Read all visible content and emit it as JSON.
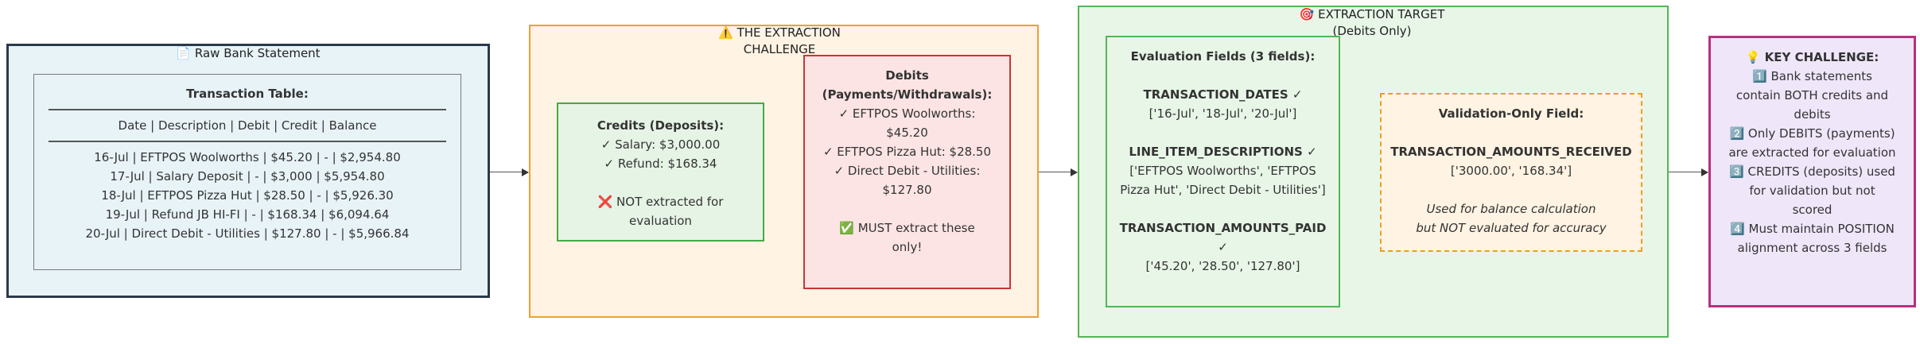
{
  "raw": {
    "title": "📄 Raw Bank Statement",
    "table_title": "Transaction Table:",
    "header": "Date | Description | Debit | Credit | Balance",
    "rows": [
      "16-Jul | EFTPOS Woolworths | $45.20 | - | $2,954.80",
      "17-Jul | Salary Deposit | - | $3,000 | $5,954.80",
      "18-Jul | EFTPOS Pizza Hut | $28.50 | - | $5,926.30",
      "19-Jul | Refund JB HI-FI | - | $168.34 | $6,094.64",
      "20-Jul | Direct Debit - Utilities | $127.80 | - | $5,966.84"
    ]
  },
  "challenge": {
    "title_line1": "⚠️ THE EXTRACTION",
    "title_line2": "CHALLENGE",
    "credits": {
      "title": "Credits (Deposits):",
      "items": [
        "✓ Salary: $3,000.00",
        "✓ Refund: $168.34"
      ],
      "note": "❌ NOT extracted for evaluation"
    },
    "debits": {
      "title": "Debits (Payments/Withdrawals):",
      "items": [
        "✓ EFTPOS Woolworths: $45.20",
        "✓ EFTPOS Pizza Hut: $28.50",
        "✓ Direct Debit - Utilities: $127.80"
      ],
      "note": "✅ MUST extract these only!"
    }
  },
  "target": {
    "title_line1": "🎯 EXTRACTION TARGET",
    "title_line2": "(Debits Only)",
    "eval": {
      "title": "Evaluation Fields (3 fields):",
      "fields": [
        {
          "name": "TRANSACTION_DATES ✓",
          "value": "['16-Jul', '18-Jul', '20-Jul']"
        },
        {
          "name": "LINE_ITEM_DESCRIPTIONS ✓",
          "value": "['EFTPOS Woolworths', 'EFTPOS Pizza Hut', 'Direct Debit - Utilities']"
        },
        {
          "name": "TRANSACTION_AMOUNTS_PAID ✓",
          "value": "['45.20', '28.50', '127.80']"
        }
      ]
    },
    "validation": {
      "title": "Validation-Only Field:",
      "field": "TRANSACTION_AMOUNTS_RECEIVED",
      "value": "['3000.00', '168.34']",
      "note_line1": "Used for balance calculation",
      "note_line2": "but NOT evaluated for accuracy"
    }
  },
  "key": {
    "title": "💡 KEY CHALLENGE:",
    "points": [
      "1️⃣ Bank statements contain BOTH credits and debits",
      "2️⃣ Only DEBITS (payments) are extracted for evaluation",
      "3️⃣ CREDITS (deposits) used for validation but not scored",
      "4️⃣ Must maintain POSITION alignment across 3 fields"
    ]
  },
  "colors": {
    "raw_fill": "#e8f3f8",
    "raw_border": "#2b3a4a",
    "challenge_fill": "#fff3e3",
    "challenge_border": "#f0a030",
    "credits_fill": "#e6f4e6",
    "credits_border": "#44aa44",
    "debits_fill": "#fde4e4",
    "debits_border": "#cc3333",
    "target_fill": "#e8f6e8",
    "target_border": "#55b555",
    "validation_border": "#e8a020",
    "key_fill": "#efe6fa",
    "key_border": "#b8307e"
  }
}
